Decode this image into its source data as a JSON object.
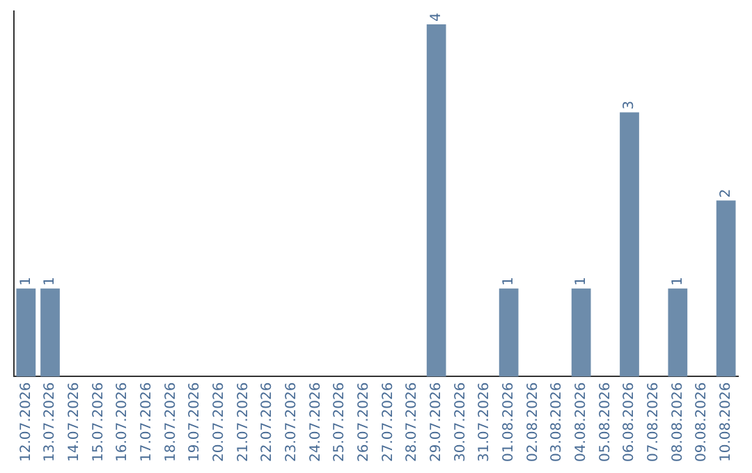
{
  "chart_data": {
    "type": "bar",
    "categories": [
      "12.07.2026",
      "13.07.2026",
      "14.07.2026",
      "15.07.2026",
      "16.07.2026",
      "17.07.2026",
      "18.07.2026",
      "19.07.2026",
      "20.07.2026",
      "21.07.2026",
      "22.07.2026",
      "23.07.2026",
      "24.07.2026",
      "25.07.2026",
      "26.07.2026",
      "27.07.2026",
      "28.07.2026",
      "29.07.2026",
      "30.07.2026",
      "31.07.2026",
      "01.08.2026",
      "02.08.2026",
      "03.08.2026",
      "04.08.2026",
      "05.08.2026",
      "06.08.2026",
      "07.08.2026",
      "08.08.2026",
      "09.08.2026",
      "10.08.2026"
    ],
    "values": [
      1,
      1,
      0,
      0,
      0,
      0,
      0,
      0,
      0,
      0,
      0,
      0,
      0,
      0,
      0,
      0,
      0,
      4,
      0,
      0,
      1,
      0,
      0,
      1,
      0,
      3,
      0,
      1,
      0,
      2
    ],
    "value_labels": [
      "1",
      "1",
      null,
      null,
      null,
      null,
      null,
      null,
      null,
      null,
      null,
      null,
      null,
      null,
      null,
      null,
      null,
      "4",
      null,
      null,
      "1",
      null,
      null,
      "1",
      null,
      "3",
      null,
      "1",
      null,
      "2"
    ],
    "color": "#6d8cab",
    "ylim": [
      0,
      4.15
    ],
    "grid": false,
    "legend": false
  }
}
